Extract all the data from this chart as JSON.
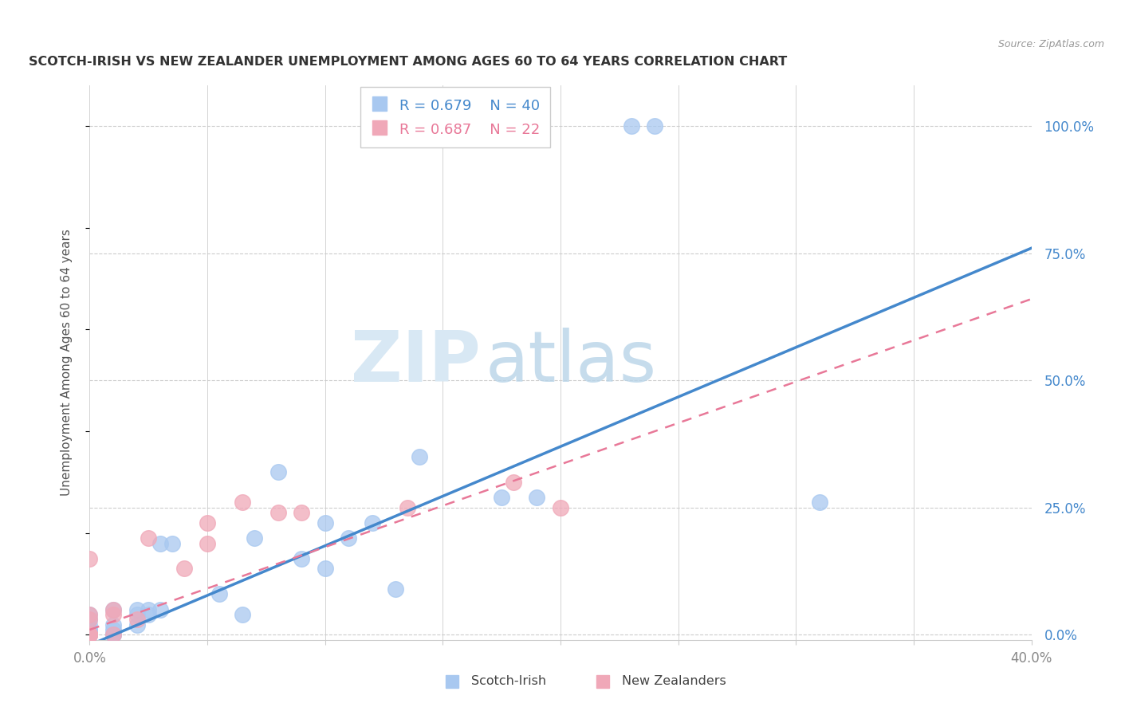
{
  "title": "SCOTCH-IRISH VS NEW ZEALANDER UNEMPLOYMENT AMONG AGES 60 TO 64 YEARS CORRELATION CHART",
  "source": "Source: ZipAtlas.com",
  "ylabel": "Unemployment Among Ages 60 to 64 years",
  "xlim": [
    0.0,
    0.4
  ],
  "ylim": [
    -0.01,
    1.08
  ],
  "x_ticks": [
    0.0,
    0.05,
    0.1,
    0.15,
    0.2,
    0.25,
    0.3,
    0.35,
    0.4
  ],
  "y_ticks_right": [
    0.0,
    0.25,
    0.5,
    0.75,
    1.0
  ],
  "y_tick_labels_right": [
    "0.0%",
    "25.0%",
    "50.0%",
    "75.0%",
    "100.0%"
  ],
  "background_color": "#ffffff",
  "watermark_zip": "ZIP",
  "watermark_atlas": "atlas",
  "legend_r1": "R = 0.679",
  "legend_n1": "N = 40",
  "legend_r2": "R = 0.687",
  "legend_n2": "N = 22",
  "scotch_irish_color": "#a8c8f0",
  "new_zealander_color": "#f0a8b8",
  "trend_blue_color": "#4488cc",
  "trend_pink_color": "#e87898",
  "trend_blue_x0": 0.0,
  "trend_blue_y0": -0.02,
  "trend_blue_x1": 0.4,
  "trend_blue_y1": 0.76,
  "trend_pink_x0": 0.0,
  "trend_pink_y0": 0.01,
  "trend_pink_x1": 0.4,
  "trend_pink_y1": 0.66,
  "scotch_irish_x": [
    0.0,
    0.0,
    0.0,
    0.0,
    0.0,
    0.0,
    0.0,
    0.0,
    0.0,
    0.0,
    0.0,
    0.01,
    0.01,
    0.01,
    0.01,
    0.01,
    0.02,
    0.02,
    0.02,
    0.025,
    0.025,
    0.03,
    0.03,
    0.035,
    0.055,
    0.065,
    0.07,
    0.08,
    0.09,
    0.1,
    0.1,
    0.11,
    0.12,
    0.13,
    0.14,
    0.175,
    0.19,
    0.23,
    0.24,
    0.31
  ],
  "scotch_irish_y": [
    0.0,
    0.0,
    0.0,
    0.0,
    0.0,
    0.0,
    0.01,
    0.01,
    0.02,
    0.03,
    0.04,
    0.0,
    0.0,
    0.01,
    0.02,
    0.05,
    0.02,
    0.04,
    0.05,
    0.04,
    0.05,
    0.05,
    0.18,
    0.18,
    0.08,
    0.04,
    0.19,
    0.32,
    0.15,
    0.13,
    0.22,
    0.19,
    0.22,
    0.09,
    0.35,
    0.27,
    0.27,
    1.0,
    1.0,
    0.26
  ],
  "new_zealander_x": [
    0.0,
    0.0,
    0.0,
    0.0,
    0.0,
    0.0,
    0.0,
    0.0,
    0.01,
    0.01,
    0.01,
    0.02,
    0.025,
    0.04,
    0.05,
    0.05,
    0.065,
    0.08,
    0.09,
    0.135,
    0.18,
    0.2
  ],
  "new_zealander_y": [
    0.0,
    0.0,
    0.0,
    0.0,
    0.0,
    0.03,
    0.04,
    0.15,
    0.0,
    0.04,
    0.05,
    0.03,
    0.19,
    0.13,
    0.18,
    0.22,
    0.26,
    0.24,
    0.24,
    0.25,
    0.3,
    0.25
  ]
}
